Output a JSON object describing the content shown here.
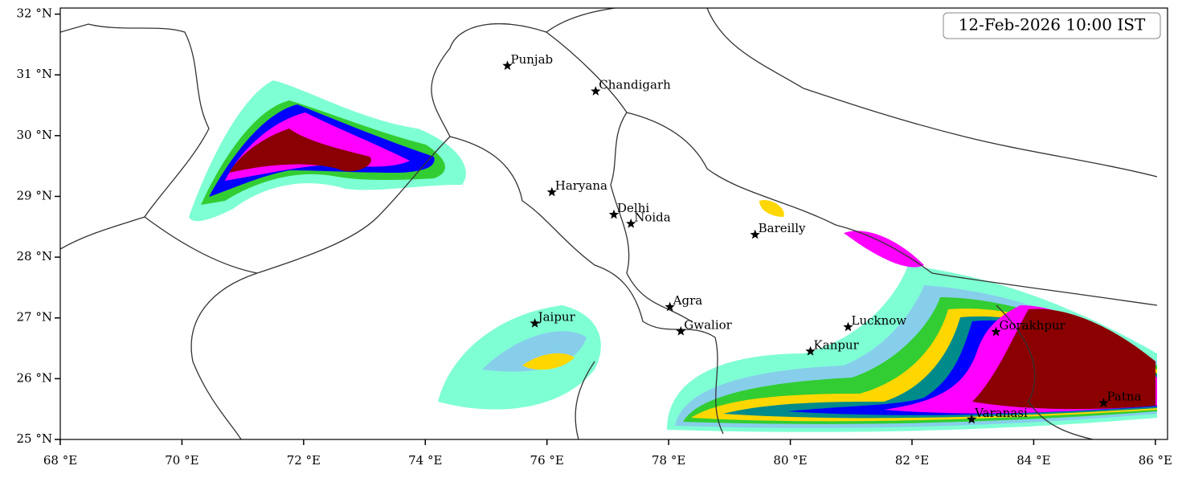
{
  "chart_data": {
    "type": "map",
    "title": "12-Feb-2026 10:00 IST",
    "xlim": [
      68,
      86.2
    ],
    "ylim": [
      25,
      32.1
    ],
    "xticks": [
      {
        "value": 68,
        "label": "68 °E"
      },
      {
        "value": 70,
        "label": "70 °E"
      },
      {
        "value": 72,
        "label": "72 °E"
      },
      {
        "value": 74,
        "label": "74 °E"
      },
      {
        "value": 76,
        "label": "76 °E"
      },
      {
        "value": 78,
        "label": "78 °E"
      },
      {
        "value": 80,
        "label": "80 °E"
      },
      {
        "value": 82,
        "label": "82 °E"
      },
      {
        "value": 84,
        "label": "84 °E"
      },
      {
        "value": 86,
        "label": "86 °E"
      }
    ],
    "yticks": [
      {
        "value": 25,
        "label": "25 °N"
      },
      {
        "value": 26,
        "label": "26 °N"
      },
      {
        "value": 27,
        "label": "27 °N"
      },
      {
        "value": 28,
        "label": "28 °N"
      },
      {
        "value": 29,
        "label": "29 °N"
      },
      {
        "value": 30,
        "label": "30 °N"
      },
      {
        "value": 31,
        "label": "31 °N"
      },
      {
        "value": 32,
        "label": "32 °N"
      }
    ],
    "cities": [
      {
        "name": "Punjab",
        "lon": 75.35,
        "lat": 31.15
      },
      {
        "name": "Chandigarh",
        "lon": 76.8,
        "lat": 30.73
      },
      {
        "name": "Haryana",
        "lon": 76.08,
        "lat": 29.07
      },
      {
        "name": "Delhi",
        "lon": 77.1,
        "lat": 28.7
      },
      {
        "name": "Noida",
        "lon": 77.38,
        "lat": 28.55
      },
      {
        "name": "Bareilly",
        "lon": 79.42,
        "lat": 28.37
      },
      {
        "name": "Agra",
        "lon": 78.02,
        "lat": 27.18
      },
      {
        "name": "Jaipur",
        "lon": 75.8,
        "lat": 26.91
      },
      {
        "name": "Gwalior",
        "lon": 78.2,
        "lat": 26.78
      },
      {
        "name": "Lucknow",
        "lon": 80.95,
        "lat": 26.85
      },
      {
        "name": "Kanpur",
        "lon": 80.33,
        "lat": 26.45
      },
      {
        "name": "Gorakhpur",
        "lon": 83.38,
        "lat": 26.77
      },
      {
        "name": "Varanasi",
        "lon": 82.98,
        "lat": 25.33
      },
      {
        "name": "Patna",
        "lon": 85.15,
        "lat": 25.6
      }
    ]
  }
}
